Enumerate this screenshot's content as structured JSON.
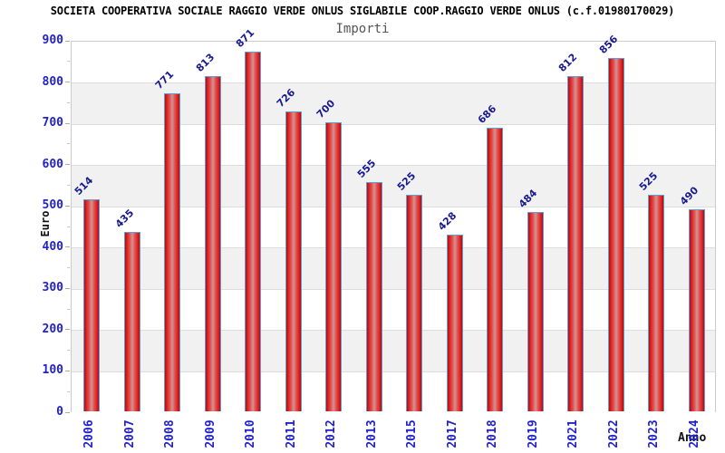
{
  "header": {
    "title": "SOCIETA COOPERATIVA SOCIALE RAGGIO VERDE ONLUS SIGLABILE COOP.RAGGIO VERDE ONLUS (c.f.01980170029)",
    "subtitle": "Importi"
  },
  "chart_data": {
    "type": "bar",
    "title": "Importi",
    "categories": [
      "2006",
      "2007",
      "2008",
      "2009",
      "2010",
      "2011",
      "2012",
      "2013",
      "2015",
      "2017",
      "2018",
      "2019",
      "2021",
      "2022",
      "2023",
      "2024"
    ],
    "values": [
      514,
      435,
      771,
      813,
      871,
      726,
      700,
      555,
      525,
      428,
      686,
      484,
      812,
      856,
      525,
      490
    ],
    "xlabel": "Anno",
    "ylabel": "Euro",
    "ylim": [
      0,
      900
    ],
    "yticks": [
      0,
      100,
      200,
      300,
      400,
      500,
      600,
      700,
      800,
      900
    ],
    "grid": true,
    "band_pattern": "alternating horizontal bands every 100 units, white from 900-800 then light gray"
  },
  "colors": {
    "bar_border": "#5b9fd8",
    "bar_edge": "#a81010",
    "bar_main": "#e42020",
    "bar_center": "#d29595",
    "value_label": "#1a1a90",
    "axis_tick_label": "#2222cc",
    "band": "#f1f1f1",
    "gridline": "#dddddd",
    "plot_border": "#cccccc",
    "tick_mark": "#aaaaaa",
    "title_color": "#000000",
    "subtitle_color": "#555555"
  }
}
